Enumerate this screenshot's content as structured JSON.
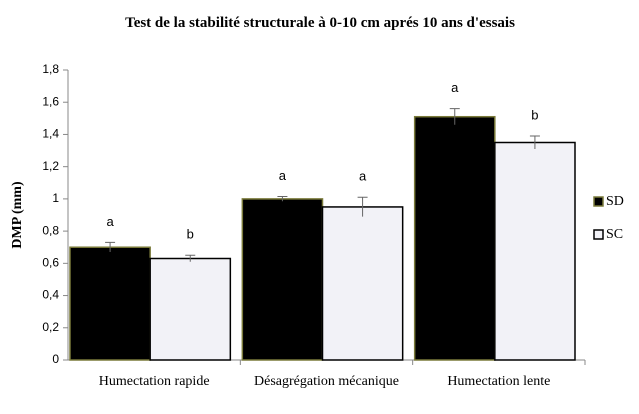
{
  "chart_data": {
    "type": "bar",
    "title": "Test de la stabilité structurale à 0-10 cm aprés 10 ans d'essais",
    "y_label": "DMP (mm)",
    "categories": [
      "Humectation rapide",
      "Désagrégation mécanique",
      "Humectation lente"
    ],
    "series": [
      {
        "name": "SD",
        "color": "#000000",
        "edge": "#7a7a3a",
        "values": [
          0.7,
          1.0,
          1.51
        ],
        "errors": [
          0.03,
          0.015,
          0.05
        ],
        "labels": [
          "a",
          "a",
          "a"
        ]
      },
      {
        "name": "SC",
        "color": "#f2f2f7",
        "edge": "#000000",
        "values": [
          0.63,
          0.95,
          1.35
        ],
        "errors": [
          0.02,
          0.06,
          0.04
        ],
        "labels": [
          "b",
          "a",
          "b"
        ]
      }
    ],
    "ylim": [
      0,
      1.8
    ],
    "yticks": [
      0,
      {
        "value": 0.2,
        "label": "0,2"
      },
      {
        "value": 0.4,
        "label": "0,4"
      },
      {
        "value": 0.6,
        "label": "0,6"
      },
      {
        "value": 0.8,
        "label": "0,8"
      },
      1,
      {
        "value": 1.2,
        "label": "1,2"
      },
      {
        "value": 1.4,
        "label": "1,4"
      },
      {
        "value": 1.6,
        "label": "1,6"
      },
      {
        "value": 1.8,
        "label": "1,8"
      }
    ],
    "grid": false,
    "legend": "right"
  }
}
